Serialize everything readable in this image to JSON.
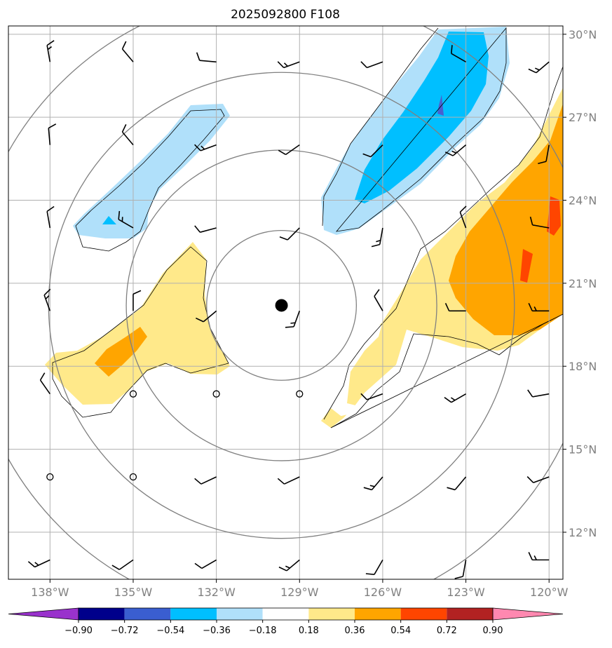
{
  "title": "2025092800 F108",
  "map": {
    "lon_range": [
      -139.5,
      -119.5
    ],
    "lat_range": [
      10.3,
      30.3
    ],
    "lon_ticks": [
      {
        "value": -138,
        "label": "138°W"
      },
      {
        "value": -135,
        "label": "135°W"
      },
      {
        "value": -132,
        "label": "132°W"
      },
      {
        "value": -129,
        "label": "129°W"
      },
      {
        "value": -126,
        "label": "126°W"
      },
      {
        "value": -123,
        "label": "123°W"
      },
      {
        "value": -120,
        "label": "120°W"
      }
    ],
    "lat_ticks": [
      {
        "value": 30,
        "label": "30°N"
      },
      {
        "value": 27,
        "label": "27°N"
      },
      {
        "value": 24,
        "label": "24°N"
      },
      {
        "value": 21,
        "label": "21°N"
      },
      {
        "value": 18,
        "label": "18°N"
      },
      {
        "value": 15,
        "label": "15°N"
      },
      {
        "value": 12,
        "label": "12°N"
      }
    ],
    "storm_center": {
      "lon": -129.65,
      "lat": 20.2
    },
    "range_rings_deg": [
      2.7,
      5.6,
      8.4,
      11.3
    ],
    "colors": {
      "lightblue": "#b0e0fa",
      "deepskyblue": "#00bfff",
      "royalblue": "#4a5fd0",
      "lightyellow": "#ffe98a",
      "orange": "#ffa500",
      "orangered": "#ff4500",
      "grid": "#b0b0b0",
      "ring": "#808080"
    }
  },
  "wind_barbs": {
    "lons": [
      -138,
      -135,
      -132,
      -129,
      -126,
      -123,
      -120
    ],
    "lats": [
      29,
      26,
      23,
      20,
      17,
      14,
      11
    ],
    "directions_deg": [
      [
        350,
        320,
        275,
        250,
        250,
        300,
        230
      ],
      [
        355,
        320,
        250,
        235,
        225,
        230,
        190
      ],
      [
        350,
        300,
        255,
        225,
        190,
        340,
        280
      ],
      [
        340,
        0,
        230,
        200,
        330,
        270,
        270
      ],
      [
        325,
        null,
        null,
        null,
        250,
        240,
        260
      ],
      [
        null,
        null,
        245,
        245,
        220,
        220,
        250
      ],
      [
        245,
        235,
        240,
        230,
        210,
        190,
        270
      ]
    ],
    "calm_symbol": "circle"
  },
  "colorbar": {
    "bounds": [
      "−0.90",
      "−0.72",
      "−0.54",
      "−0.36",
      "−0.18",
      "0.18",
      "0.36",
      "0.54",
      "0.72",
      "0.90"
    ],
    "colors": [
      "#9932cc",
      "#00008b",
      "#3a5ed0",
      "#00bfff",
      "#b0e0fa",
      "#ffffff",
      "#ffe98a",
      "#ffa500",
      "#ff4500",
      "#b22222",
      "#ff88b0"
    ],
    "extend": "both"
  }
}
